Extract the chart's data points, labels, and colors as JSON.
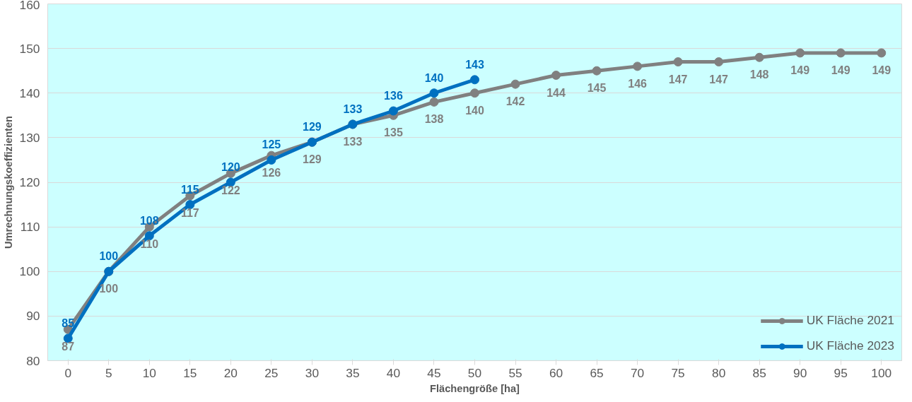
{
  "chart_data": {
    "type": "line",
    "xlabel": "Flächengröße [ha]",
    "ylabel": "Umrechnungskoeffizienten",
    "categories": [
      "0",
      "5",
      "10",
      "15",
      "20",
      "25",
      "30",
      "35",
      "40",
      "45",
      "50",
      "55",
      "60",
      "65",
      "70",
      "75",
      "80",
      "85",
      "90",
      "95",
      "100"
    ],
    "series": [
      {
        "name": "UK Fläche 2021",
        "color": "#808080",
        "values": [
          87,
          100,
          110,
          117,
          122,
          126,
          129,
          133,
          135,
          138,
          140,
          142,
          144,
          145,
          146,
          147,
          147,
          148,
          149,
          149,
          149
        ]
      },
      {
        "name": "UK Fläche 2023",
        "color": "#0070c0",
        "values": [
          85,
          100,
          108,
          115,
          120,
          125,
          129,
          133,
          136,
          140,
          143,
          null,
          null,
          null,
          null,
          null,
          null,
          null,
          null,
          null,
          null
        ]
      }
    ],
    "ylim": [
      80,
      160
    ],
    "yticks": [
      80,
      90,
      100,
      110,
      120,
      130,
      140,
      150,
      160
    ],
    "grid": "y",
    "legend": "bottom right",
    "marker": "circle",
    "line_style": "solid",
    "data_labels": true
  }
}
